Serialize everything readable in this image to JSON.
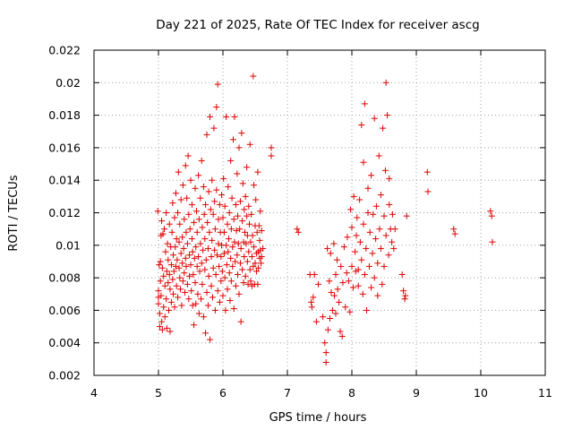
{
  "chart_data": {
    "type": "scatter",
    "title": "Day 221 of 2025, Rate Of TEC Index for receiver ascg",
    "xlabel": "GPS time / hours",
    "ylabel": "ROTI / TECUs",
    "xlim": [
      4,
      11
    ],
    "ylim": [
      0.002,
      0.022
    ],
    "xticks": [
      4,
      5,
      6,
      7,
      8,
      9,
      10,
      11
    ],
    "yticks": [
      0.002,
      0.004,
      0.006,
      0.008,
      0.01,
      0.012,
      0.014,
      0.016,
      0.018,
      0.02,
      0.022
    ],
    "xtick_labels": [
      "4",
      "5",
      "6",
      "7",
      "8",
      "9",
      "10",
      "11"
    ],
    "ytick_labels": [
      "0.002",
      "0.004",
      "0.006",
      "0.008",
      "0.01",
      "0.012",
      "0.014",
      "0.016",
      "0.018",
      "0.02",
      "0.022"
    ],
    "grid": true,
    "marker": "+",
    "color": "#e00000",
    "points": [
      [
        4.99,
        0.0121
      ],
      [
        5.0,
        0.0068
      ],
      [
        5.0,
        0.0072
      ],
      [
        5.0,
        0.0064
      ],
      [
        5.01,
        0.0088
      ],
      [
        5.02,
        0.0058
      ],
      [
        5.02,
        0.005
      ],
      [
        5.03,
        0.009
      ],
      [
        5.03,
        0.0078
      ],
      [
        5.04,
        0.0106
      ],
      [
        5.04,
        0.0069
      ],
      [
        5.05,
        0.0115
      ],
      [
        5.05,
        0.0053
      ],
      [
        5.06,
        0.0086
      ],
      [
        5.06,
        0.0048
      ],
      [
        5.07,
        0.0107
      ],
      [
        5.08,
        0.0062
      ],
      [
        5.08,
        0.0081
      ],
      [
        5.09,
        0.011
      ],
      [
        5.1,
        0.0075
      ],
      [
        5.1,
        0.0056
      ],
      [
        5.11,
        0.0096
      ],
      [
        5.12,
        0.012
      ],
      [
        5.12,
        0.0067
      ],
      [
        5.13,
        0.0084
      ],
      [
        5.13,
        0.0049
      ],
      [
        5.14,
        0.0101
      ],
      [
        5.15,
        0.0077
      ],
      [
        5.15,
        0.0091
      ],
      [
        5.16,
        0.006
      ],
      [
        5.17,
        0.0113
      ],
      [
        5.17,
        0.0082
      ],
      [
        5.18,
        0.0047
      ],
      [
        5.18,
        0.0073
      ],
      [
        5.19,
        0.0099
      ],
      [
        5.2,
        0.0088
      ],
      [
        5.2,
        0.0065
      ],
      [
        5.21,
        0.0108
      ],
      [
        5.22,
        0.0079
      ],
      [
        5.22,
        0.0126
      ],
      [
        5.23,
        0.0094
      ],
      [
        5.23,
        0.007
      ],
      [
        5.24,
        0.0084
      ],
      [
        5.25,
        0.0117
      ],
      [
        5.25,
        0.0062
      ],
      [
        5.26,
        0.0099
      ],
      [
        5.27,
        0.0087
      ],
      [
        5.27,
        0.0132
      ],
      [
        5.28,
        0.0075
      ],
      [
        5.28,
        0.0104
      ],
      [
        5.29,
        0.0091
      ],
      [
        5.3,
        0.012
      ],
      [
        5.3,
        0.0068
      ],
      [
        5.31,
        0.0145
      ],
      [
        5.32,
        0.0086
      ],
      [
        5.32,
        0.0102
      ],
      [
        5.33,
        0.008
      ],
      [
        5.33,
        0.0113
      ],
      [
        5.34,
        0.0073
      ],
      [
        5.35,
        0.0095
      ],
      [
        5.35,
        0.0128
      ],
      [
        5.36,
        0.0063
      ],
      [
        5.37,
        0.0089
      ],
      [
        5.37,
        0.0105
      ],
      [
        5.38,
        0.0137
      ],
      [
        5.38,
        0.0078
      ],
      [
        5.39,
        0.0098
      ],
      [
        5.4,
        0.0083
      ],
      [
        5.4,
        0.0116
      ],
      [
        5.41,
        0.0071
      ],
      [
        5.42,
        0.0149
      ],
      [
        5.42,
        0.0092
      ],
      [
        5.43,
        0.0108
      ],
      [
        5.43,
        0.0087
      ],
      [
        5.44,
        0.0129
      ],
      [
        5.45,
        0.0076
      ],
      [
        5.45,
        0.0101
      ],
      [
        5.46,
        0.0155
      ],
      [
        5.47,
        0.0067
      ],
      [
        5.47,
        0.0119
      ],
      [
        5.48,
        0.0094
      ],
      [
        5.48,
        0.0081
      ],
      [
        5.49,
        0.011
      ],
      [
        5.5,
        0.014
      ],
      [
        5.5,
        0.0088
      ],
      [
        5.51,
        0.0072
      ],
      [
        5.52,
        0.0104
      ],
      [
        5.52,
        0.0125
      ],
      [
        5.53,
        0.0063
      ],
      [
        5.53,
        0.0096
      ],
      [
        5.54,
        0.0082
      ],
      [
        5.55,
        0.0114
      ],
      [
        5.55,
        0.0051
      ],
      [
        5.56,
        0.0092
      ],
      [
        5.57,
        0.0135
      ],
      [
        5.57,
        0.0077
      ],
      [
        5.58,
        0.0099
      ],
      [
        5.58,
        0.0064
      ],
      [
        5.59,
        0.0121
      ],
      [
        5.6,
        0.0087
      ],
      [
        5.6,
        0.0108
      ],
      [
        5.61,
        0.007
      ],
      [
        5.62,
        0.0143
      ],
      [
        5.62,
        0.0093
      ],
      [
        5.63,
        0.0058
      ],
      [
        5.63,
        0.0116
      ],
      [
        5.64,
        0.0084
      ],
      [
        5.65,
        0.0129
      ],
      [
        5.65,
        0.0101
      ],
      [
        5.66,
        0.0067
      ],
      [
        5.67,
        0.0152
      ],
      [
        5.67,
        0.0089
      ],
      [
        5.68,
        0.0111
      ],
      [
        5.68,
        0.0076
      ],
      [
        5.69,
        0.0097
      ],
      [
        5.7,
        0.0136
      ],
      [
        5.7,
        0.0056
      ],
      [
        5.71,
        0.0119
      ],
      [
        5.72,
        0.0085
      ],
      [
        5.72,
        0.0104
      ],
      [
        5.73,
        0.0046
      ],
      [
        5.73,
        0.0125
      ],
      [
        5.74,
        0.0091
      ],
      [
        5.75,
        0.0071
      ],
      [
        5.75,
        0.0168
      ],
      [
        5.76,
        0.0114
      ],
      [
        5.77,
        0.0098
      ],
      [
        5.77,
        0.0063
      ],
      [
        5.78,
        0.0133
      ],
      [
        5.78,
        0.0081
      ],
      [
        5.79,
        0.0108
      ],
      [
        5.8,
        0.0042
      ],
      [
        5.8,
        0.0179
      ],
      [
        5.81,
        0.0122
      ],
      [
        5.82,
        0.0093
      ],
      [
        5.82,
        0.0075
      ],
      [
        5.83,
        0.014
      ],
      [
        5.83,
        0.0103
      ],
      [
        5.84,
        0.0068
      ],
      [
        5.85,
        0.0119
      ],
      [
        5.85,
        0.0086
      ],
      [
        5.86,
        0.0172
      ],
      [
        5.87,
        0.0097
      ],
      [
        5.87,
        0.0127
      ],
      [
        5.88,
        0.006
      ],
      [
        5.88,
        0.011
      ],
      [
        5.89,
        0.0082
      ],
      [
        5.9,
        0.0185
      ],
      [
        5.9,
        0.0134
      ],
      [
        5.91,
        0.0094
      ],
      [
        5.92,
        0.0199
      ],
      [
        5.92,
        0.0072
      ],
      [
        5.93,
        0.0116
      ],
      [
        5.93,
        0.0101
      ],
      [
        5.94,
        0.0087
      ],
      [
        5.95,
        0.0125
      ],
      [
        5.95,
        0.0065
      ],
      [
        5.96,
        0.0108
      ],
      [
        5.97,
        0.0093
      ],
      [
        5.97,
        0.0078
      ],
      [
        5.98,
        0.0131
      ],
      [
        5.98,
        0.01
      ],
      [
        5.99,
        0.0084
      ],
      [
        6.0,
        0.0117
      ],
      [
        6.0,
        0.0069
      ],
      [
        6.01,
        0.0141
      ],
      [
        6.02,
        0.0095
      ],
      [
        6.02,
        0.0108
      ],
      [
        6.03,
        0.008
      ],
      [
        6.03,
        0.0124
      ],
      [
        6.04,
        0.006
      ],
      [
        6.05,
        0.01
      ],
      [
        6.05,
        0.0179
      ],
      [
        6.06,
        0.0088
      ],
      [
        6.07,
        0.0113
      ],
      [
        6.07,
        0.0073
      ],
      [
        6.08,
        0.0136
      ],
      [
        6.08,
        0.0096
      ],
      [
        6.09,
        0.0104
      ],
      [
        6.1,
        0.0083
      ],
      [
        6.1,
        0.012
      ],
      [
        6.11,
        0.0066
      ],
      [
        6.12,
        0.0152
      ],
      [
        6.12,
        0.0092
      ],
      [
        6.13,
        0.011
      ],
      [
        6.13,
        0.0078
      ],
      [
        6.14,
        0.0129
      ],
      [
        6.15,
        0.0099
      ],
      [
        6.15,
        0.0087
      ],
      [
        6.16,
        0.0165
      ],
      [
        6.17,
        0.0116
      ],
      [
        6.17,
        0.0061
      ],
      [
        6.18,
        0.0102
      ],
      [
        6.18,
        0.0179
      ],
      [
        6.19,
        0.009
      ],
      [
        6.2,
        0.0125
      ],
      [
        6.2,
        0.0075
      ],
      [
        6.21,
        0.0109
      ],
      [
        6.22,
        0.0144
      ],
      [
        6.22,
        0.0094
      ],
      [
        6.23,
        0.0082
      ],
      [
        6.23,
        0.0118
      ],
      [
        6.24,
        0.0101
      ],
      [
        6.25,
        0.007
      ],
      [
        6.25,
        0.016
      ],
      [
        6.26,
        0.011
      ],
      [
        6.27,
        0.0089
      ],
      [
        6.27,
        0.0127
      ],
      [
        6.28,
        0.0053
      ],
      [
        6.28,
        0.0098
      ],
      [
        6.29,
        0.0169
      ],
      [
        6.3,
        0.0115
      ],
      [
        6.3,
        0.0085
      ],
      [
        6.31,
        0.0138
      ],
      [
        6.32,
        0.0102
      ],
      [
        6.32,
        0.0077
      ],
      [
        6.33,
        0.0122
      ],
      [
        6.33,
        0.0093
      ],
      [
        6.34,
        0.0108
      ],
      [
        6.35,
        0.013
      ],
      [
        6.35,
        0.0081
      ],
      [
        6.36,
        0.0101
      ],
      [
        6.37,
        0.0118
      ],
      [
        6.37,
        0.0148
      ],
      [
        6.38,
        0.009
      ],
      [
        6.38,
        0.0106
      ],
      [
        6.39,
        0.0076
      ],
      [
        6.4,
        0.0124
      ],
      [
        6.4,
        0.0096
      ],
      [
        6.41,
        0.0113
      ],
      [
        6.42,
        0.0085
      ],
      [
        6.42,
        0.0162
      ],
      [
        6.43,
        0.0102
      ],
      [
        6.43,
        0.0078
      ],
      [
        6.44,
        0.0119
      ],
      [
        6.45,
        0.0093
      ],
      [
        6.45,
        0.0075
      ],
      [
        6.46,
        0.0106
      ],
      [
        6.47,
        0.0204
      ],
      [
        6.47,
        0.0087
      ],
      [
        6.48,
        0.0137
      ],
      [
        6.48,
        0.0099
      ],
      [
        6.49,
        0.0076
      ],
      [
        6.5,
        0.0112
      ],
      [
        6.5,
        0.0089
      ],
      [
        6.51,
        0.0128
      ],
      [
        6.52,
        0.0095
      ],
      [
        6.52,
        0.0084
      ],
      [
        6.53,
        0.0108
      ],
      [
        6.54,
        0.0076
      ],
      [
        6.54,
        0.0145
      ],
      [
        6.55,
        0.0096
      ],
      [
        6.55,
        0.0086
      ],
      [
        6.56,
        0.0112
      ],
      [
        6.57,
        0.0103
      ],
      [
        6.57,
        0.0092
      ],
      [
        6.58,
        0.0121
      ],
      [
        6.58,
        0.0097
      ],
      [
        6.59,
        0.0089
      ],
      [
        6.6,
        0.0109
      ],
      [
        6.6,
        0.0093
      ],
      [
        6.62,
        0.0098
      ],
      [
        6.75,
        0.016
      ],
      [
        6.75,
        0.0155
      ],
      [
        7.15,
        0.011
      ],
      [
        7.17,
        0.0108
      ],
      [
        7.35,
        0.0082
      ],
      [
        7.37,
        0.0065
      ],
      [
        7.38,
        0.0062
      ],
      [
        7.4,
        0.0068
      ],
      [
        7.42,
        0.0082
      ],
      [
        7.45,
        0.0053
      ],
      [
        7.48,
        0.0076
      ],
      [
        7.55,
        0.0056
      ],
      [
        7.58,
        0.004
      ],
      [
        7.6,
        0.0034
      ],
      [
        7.6,
        0.0028
      ],
      [
        7.62,
        0.0098
      ],
      [
        7.63,
        0.0048
      ],
      [
        7.65,
        0.0078
      ],
      [
        7.66,
        0.0055
      ],
      [
        7.67,
        0.0095
      ],
      [
        7.68,
        0.0071
      ],
      [
        7.7,
        0.006
      ],
      [
        7.72,
        0.0101
      ],
      [
        7.73,
        0.0069
      ],
      [
        7.75,
        0.0082
      ],
      [
        7.75,
        0.0058
      ],
      [
        7.77,
        0.0091
      ],
      [
        7.78,
        0.0073
      ],
      [
        7.8,
        0.0065
      ],
      [
        7.82,
        0.0047
      ],
      [
        7.83,
        0.0087
      ],
      [
        7.85,
        0.0044
      ],
      [
        7.86,
        0.0077
      ],
      [
        7.88,
        0.0099
      ],
      [
        7.9,
        0.0062
      ],
      [
        7.92,
        0.0083
      ],
      [
        7.93,
        0.0105
      ],
      [
        7.95,
        0.0078
      ],
      [
        7.97,
        0.0059
      ],
      [
        7.98,
        0.0122
      ],
      [
        8.0,
        0.0087
      ],
      [
        8.0,
        0.0111
      ],
      [
        8.02,
        0.0074
      ],
      [
        8.03,
        0.013
      ],
      [
        8.05,
        0.0096
      ],
      [
        8.06,
        0.0084
      ],
      [
        8.07,
        0.0106
      ],
      [
        8.08,
        0.0117
      ],
      [
        8.1,
        0.0085
      ],
      [
        8.1,
        0.0075
      ],
      [
        8.12,
        0.0128
      ],
      [
        8.13,
        0.0102
      ],
      [
        8.15,
        0.0091
      ],
      [
        8.15,
        0.0174
      ],
      [
        8.17,
        0.007
      ],
      [
        8.18,
        0.0113
      ],
      [
        8.18,
        0.0151
      ],
      [
        8.2,
        0.0082
      ],
      [
        8.2,
        0.0187
      ],
      [
        8.22,
        0.0098
      ],
      [
        8.23,
        0.006
      ],
      [
        8.25,
        0.012
      ],
      [
        8.25,
        0.0135
      ],
      [
        8.27,
        0.0087
      ],
      [
        8.28,
        0.0108
      ],
      [
        8.3,
        0.0074
      ],
      [
        8.3,
        0.0143
      ],
      [
        8.32,
        0.0095
      ],
      [
        8.33,
        0.0119
      ],
      [
        8.35,
        0.008
      ],
      [
        8.35,
        0.0178
      ],
      [
        8.37,
        0.0104
      ],
      [
        8.38,
        0.0124
      ],
      [
        8.4,
        0.0069
      ],
      [
        8.4,
        0.0089
      ],
      [
        8.42,
        0.0155
      ],
      [
        8.43,
        0.011
      ],
      [
        8.45,
        0.0131
      ],
      [
        8.45,
        0.0098
      ],
      [
        8.47,
        0.0076
      ],
      [
        8.48,
        0.0172
      ],
      [
        8.5,
        0.0118
      ],
      [
        8.5,
        0.0087
      ],
      [
        8.52,
        0.0146
      ],
      [
        8.53,
        0.02
      ],
      [
        8.53,
        0.0106
      ],
      [
        8.55,
        0.018
      ],
      [
        8.57,
        0.0094
      ],
      [
        8.58,
        0.0141
      ],
      [
        8.58,
        0.0125
      ],
      [
        8.6,
        0.011
      ],
      [
        8.62,
        0.0102
      ],
      [
        8.63,
        0.0119
      ],
      [
        8.65,
        0.0098
      ],
      [
        8.67,
        0.011
      ],
      [
        8.78,
        0.0082
      ],
      [
        8.8,
        0.0072
      ],
      [
        8.82,
        0.0067
      ],
      [
        8.83,
        0.0069
      ],
      [
        8.85,
        0.0118
      ],
      [
        9.17,
        0.0145
      ],
      [
        9.18,
        0.0133
      ],
      [
        9.58,
        0.011
      ],
      [
        9.6,
        0.0107
      ],
      [
        10.15,
        0.0121
      ],
      [
        10.17,
        0.0118
      ],
      [
        10.18,
        0.0102
      ]
    ]
  }
}
